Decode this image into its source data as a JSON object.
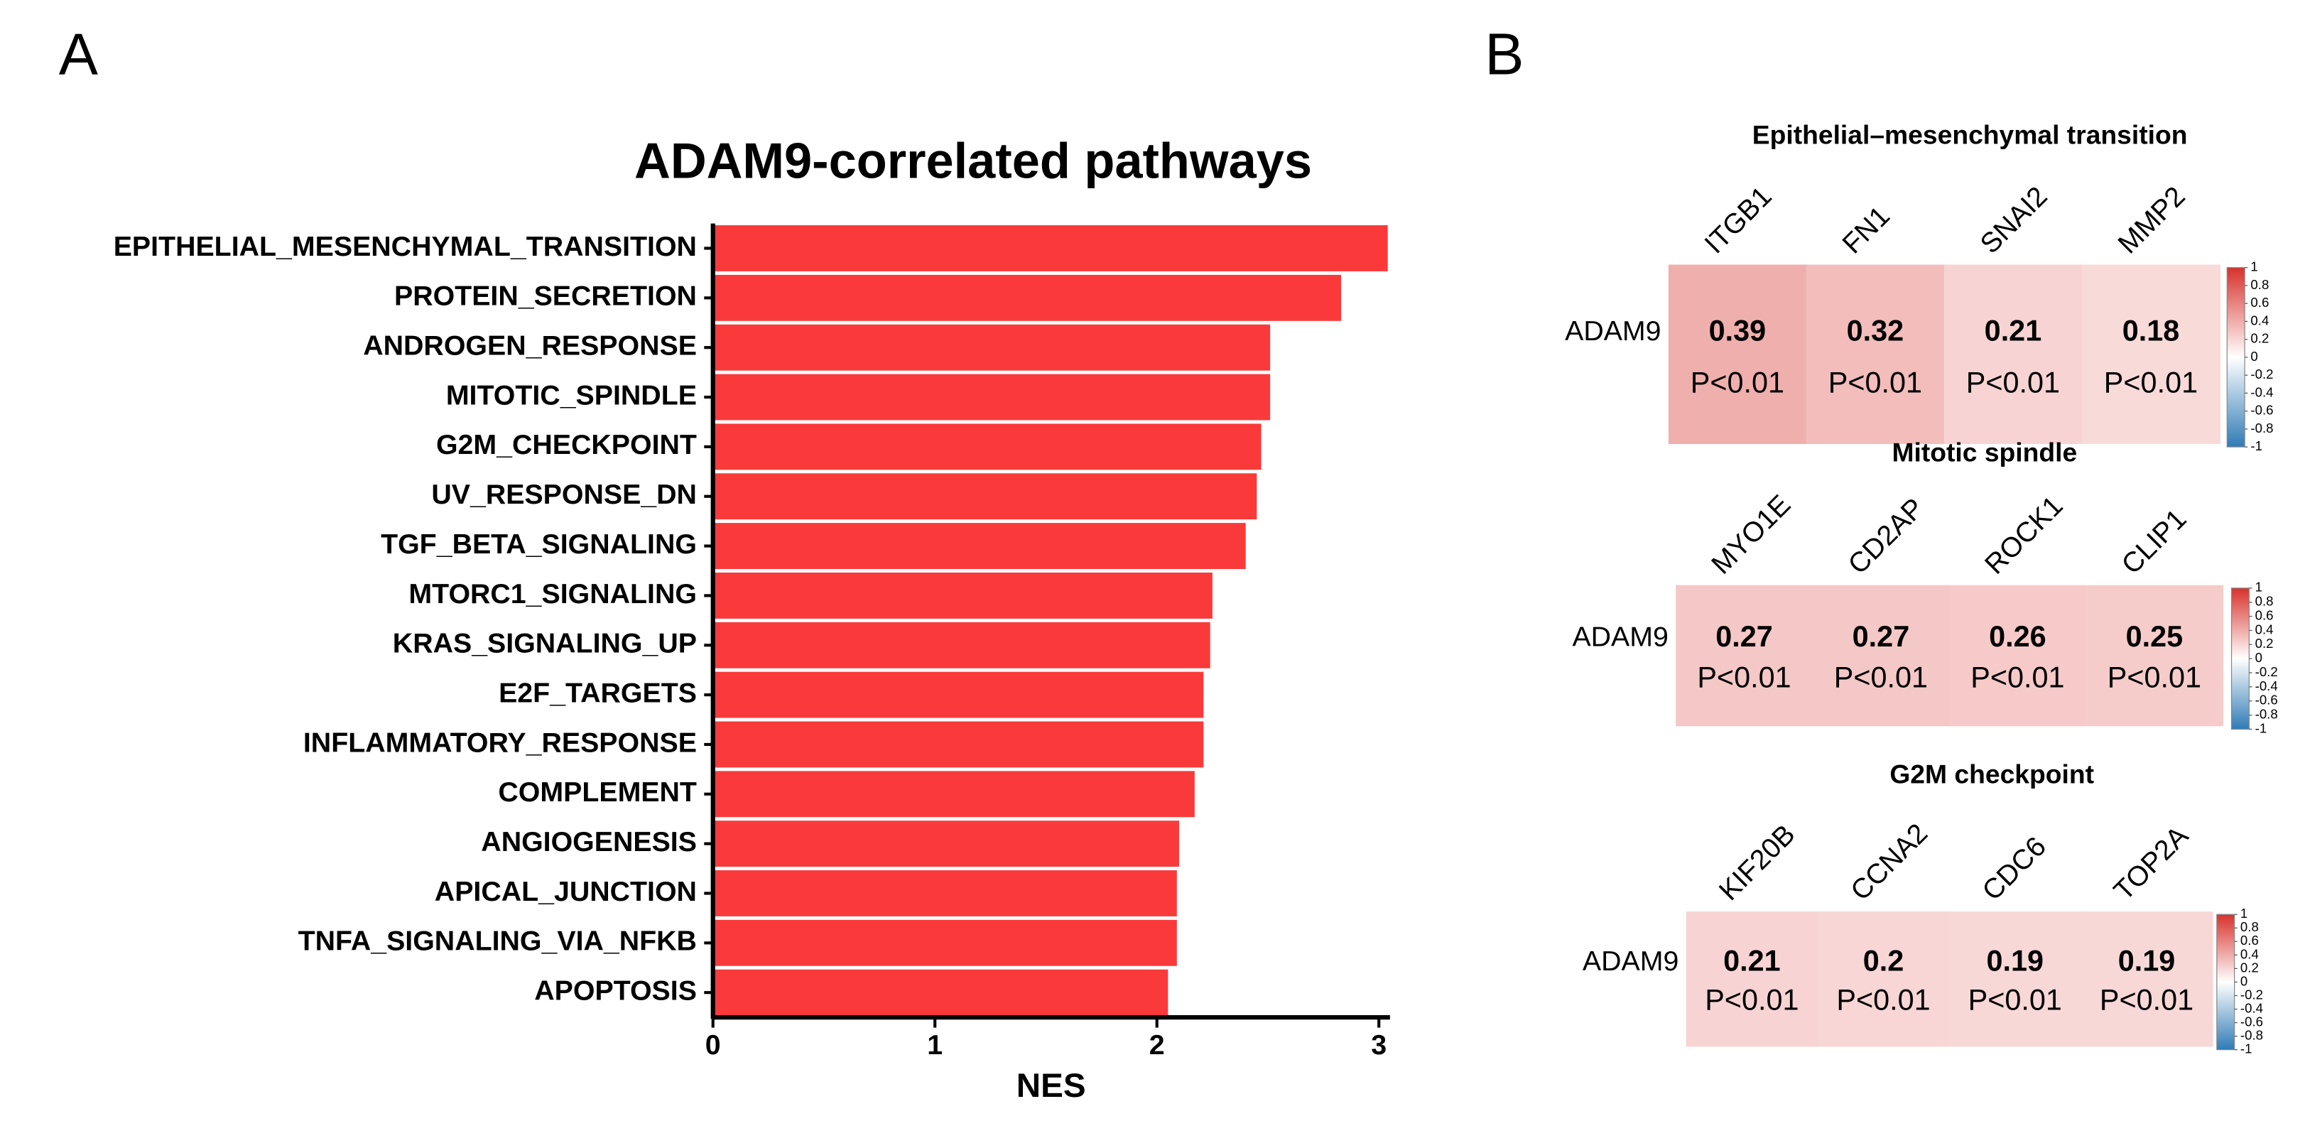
{
  "chart_data": [
    {
      "type": "barh",
      "panel": "A",
      "title": "ADAM9-correlated pathways",
      "xlabel": "NES",
      "categories": [
        "EPITHELIAL_MESENCHYMAL_TRANSITION",
        "PROTEIN_SECRETION",
        "ANDROGEN_RESPONSE",
        "MITOTIC_SPINDLE",
        "G2M_CHECKPOINT",
        "UV_RESPONSE_DN",
        "TGF_BETA_SIGNALING",
        "MTORC1_SIGNALING",
        "KRAS_SIGNALING_UP",
        "E2F_TARGETS",
        "INFLAMMATORY_RESPONSE",
        "COMPLEMENT",
        "ANGIOGENESIS",
        "APICAL_JUNCTION",
        "TNFA_SIGNALING_VIA_NFKB",
        "APOPTOSIS"
      ],
      "values": [
        3.04,
        2.83,
        2.51,
        2.51,
        2.47,
        2.45,
        2.4,
        2.25,
        2.24,
        2.21,
        2.21,
        2.17,
        2.1,
        2.09,
        2.09,
        2.05
      ],
      "color": "#fa3a3a",
      "xlim": [
        0,
        3.05
      ],
      "xticks": [
        0,
        1,
        2,
        3
      ]
    },
    {
      "type": "heatmap",
      "panel": "B",
      "title": "Epithelial–mesenchymal transition",
      "rows": [
        "ADAM9"
      ],
      "columns": [
        "ITGB1",
        "FN1",
        "SNAI2",
        "MMP2"
      ],
      "values": [
        [
          0.39,
          0.32,
          0.21,
          0.18
        ]
      ],
      "annotations": [
        [
          "P<0.01",
          "P<0.01",
          "P<0.01",
          "P<0.01"
        ]
      ],
      "clim": [
        -1,
        1
      ],
      "colorbar_ticks": [
        1,
        0.8,
        0.6,
        0.4,
        0.2,
        0,
        -0.2,
        -0.4,
        -0.6,
        -0.8,
        -1
      ],
      "colormap": [
        "#2f7bb6",
        "#ffffff",
        "#d7322c"
      ]
    },
    {
      "type": "heatmap",
      "title": "Mitotic spindle",
      "rows": [
        "ADAM9"
      ],
      "columns": [
        "MYO1E",
        "CD2AP",
        "ROCK1",
        "CLIP1"
      ],
      "values": [
        [
          0.27,
          0.27,
          0.26,
          0.25
        ]
      ],
      "annotations": [
        [
          "P<0.01",
          "P<0.01",
          "P<0.01",
          "P<0.01"
        ]
      ],
      "clim": [
        -1,
        1
      ],
      "colorbar_ticks": [
        1,
        0.8,
        0.6,
        0.4,
        0.2,
        0,
        -0.2,
        -0.4,
        -0.6,
        -0.8,
        -1
      ],
      "colormap": [
        "#2f7bb6",
        "#ffffff",
        "#d7322c"
      ]
    },
    {
      "type": "heatmap",
      "title": "G2M checkpoint",
      "rows": [
        "ADAM9"
      ],
      "columns": [
        "KIF20B",
        "CCNA2",
        "CDC6",
        "TOP2A"
      ],
      "values": [
        [
          0.21,
          0.2,
          0.19,
          0.19
        ]
      ],
      "annotations": [
        [
          "P<0.01",
          "P<0.01",
          "P<0.01",
          "P<0.01"
        ]
      ],
      "clim": [
        -1,
        1
      ],
      "colorbar_ticks": [
        1,
        0.8,
        0.6,
        0.4,
        0.2,
        0,
        -0.2,
        -0.4,
        -0.6,
        -0.8,
        -1
      ],
      "colormap": [
        "#2f7bb6",
        "#ffffff",
        "#d7322c"
      ]
    }
  ]
}
